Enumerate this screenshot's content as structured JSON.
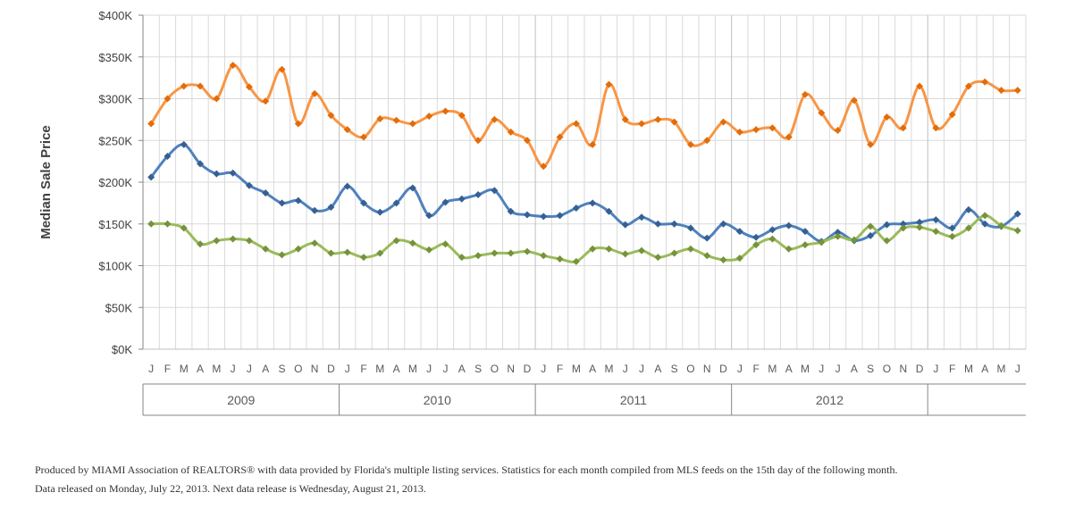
{
  "chart_data": {
    "type": "line",
    "title": "",
    "xlabel": "",
    "ylabel": "Median Sale Price",
    "ylim": [
      0,
      400
    ],
    "y_ticks": [
      "$0K",
      "$50K",
      "$100K",
      "$150K",
      "$200K",
      "$250K",
      "$300K",
      "$350K",
      "$400K"
    ],
    "grid": true,
    "legend": "none",
    "smooth": true,
    "month_labels": [
      "J",
      "F",
      "M",
      "A",
      "M",
      "J",
      "J",
      "A",
      "S",
      "O",
      "N",
      "D",
      "J",
      "F",
      "M",
      "A",
      "M",
      "J",
      "J",
      "A",
      "S",
      "O",
      "N",
      "D",
      "J",
      "F",
      "M",
      "A",
      "M",
      "J",
      "J",
      "A",
      "S",
      "O",
      "N",
      "D",
      "J",
      "F",
      "M",
      "A",
      "M",
      "J",
      "J",
      "A",
      "S",
      "O",
      "N",
      "D",
      "J",
      "F",
      "M",
      "A",
      "M",
      "J"
    ],
    "years": [
      "2009",
      "2010",
      "2011",
      "2012"
    ],
    "series": [
      {
        "color": "#f79646",
        "marker_color": "#e36c0a",
        "values": [
          270,
          300,
          315,
          315,
          300,
          340,
          314,
          297,
          335,
          270,
          306,
          280,
          263,
          254,
          276,
          274,
          270,
          279,
          285,
          280,
          250,
          275,
          260,
          250,
          219,
          254,
          270,
          245,
          317,
          275,
          270,
          275,
          272,
          245,
          250,
          272,
          260,
          263,
          265,
          254,
          305,
          283,
          262,
          298,
          245,
          278,
          265,
          315,
          265,
          281,
          315,
          320,
          310,
          310
        ]
      },
      {
        "color": "#4f81bd",
        "marker_color": "#366092",
        "values": [
          206,
          231,
          245,
          222,
          210,
          211,
          196,
          187,
          175,
          178,
          166,
          170,
          195,
          175,
          164,
          175,
          193,
          160,
          176,
          180,
          185,
          190,
          165,
          161,
          159,
          160,
          169,
          175,
          165,
          149,
          158,
          150,
          150,
          145,
          133,
          150,
          141,
          134,
          143,
          148,
          141,
          129,
          140,
          130,
          136,
          149,
          150,
          152,
          155,
          145,
          167,
          150,
          147,
          162
        ]
      },
      {
        "color": "#9bbb59",
        "marker_color": "#76923c",
        "values": [
          150,
          150,
          145,
          126,
          130,
          132,
          130,
          120,
          113,
          120,
          127,
          115,
          116,
          110,
          115,
          130,
          127,
          119,
          126,
          110,
          112,
          115,
          115,
          117,
          112,
          108,
          105,
          120,
          120,
          114,
          118,
          110,
          115,
          120,
          112,
          107,
          109,
          125,
          132,
          120,
          125,
          128,
          135,
          131,
          147,
          130,
          145,
          146,
          141,
          135,
          145,
          160,
          148,
          142
        ]
      }
    ]
  },
  "footer": {
    "line1": "Produced by MIAMI Association of REALTORS® with data provided by Florida's multiple listing services. Statistics for each month compiled from MLS feeds on the 15th day of the following month.",
    "line2": "Data released on Monday, July 22, 2013. Next data release is Wednesday, August 21, 2013."
  }
}
